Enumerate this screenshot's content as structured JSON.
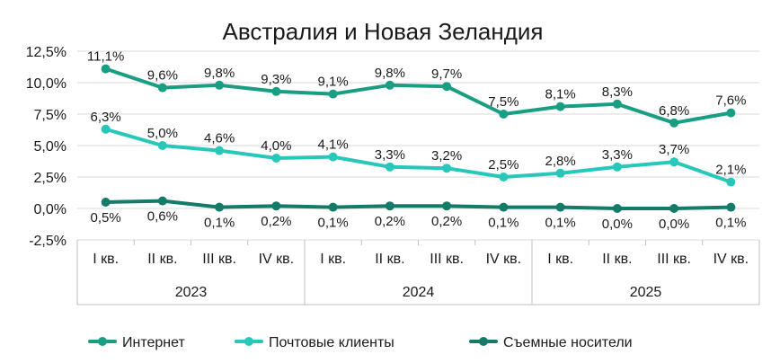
{
  "chart_data": {
    "type": "line",
    "title": "Австралия и Новая Зеландия",
    "ylim": [
      -2.5,
      12.5
    ],
    "yticks": [
      -2.5,
      0.0,
      2.5,
      5.0,
      7.5,
      10.0,
      12.5
    ],
    "ytick_labels": [
      "-2,5%",
      "0,0%",
      "2,5%",
      "5,0%",
      "7,5%",
      "10,0%",
      "12,5%"
    ],
    "categories": [
      "I кв.",
      "II кв.",
      "III кв.",
      "IV кв.",
      "I кв.",
      "II кв.",
      "III кв.",
      "IV кв.",
      "I кв.",
      "II кв.",
      "III кв.",
      "IV кв."
    ],
    "groups": [
      {
        "label": "2023",
        "span": 4
      },
      {
        "label": "2024",
        "span": 4
      },
      {
        "label": "2025",
        "span": 4
      }
    ],
    "grid": true,
    "legend_position": "bottom",
    "series": [
      {
        "name": "Интернет",
        "color": "#1a9e83",
        "values": [
          11.1,
          9.6,
          9.8,
          9.3,
          9.1,
          9.8,
          9.7,
          7.5,
          8.1,
          8.3,
          6.8,
          7.6
        ],
        "labels": [
          "11,1%",
          "9,6%",
          "9,8%",
          "9,3%",
          "9,1%",
          "9,8%",
          "9,7%",
          "7,5%",
          "8,1%",
          "8,3%",
          "6,8%",
          "7,6%"
        ],
        "label_position": "above"
      },
      {
        "name": "Почтовые клиенты",
        "color": "#27c8b9",
        "values": [
          6.3,
          5.0,
          4.6,
          4.0,
          4.1,
          3.3,
          3.2,
          2.5,
          2.8,
          3.3,
          3.7,
          2.1
        ],
        "labels": [
          "6,3%",
          "5,0%",
          "4,6%",
          "4,0%",
          "4,1%",
          "3,3%",
          "3,2%",
          "2,5%",
          "2,8%",
          "3,3%",
          "3,7%",
          "2,1%"
        ],
        "label_position": "above"
      },
      {
        "name": "Съемные носители",
        "color": "#137b68",
        "values": [
          0.5,
          0.6,
          0.1,
          0.2,
          0.1,
          0.2,
          0.2,
          0.1,
          0.1,
          0.0,
          0.0,
          0.1
        ],
        "labels": [
          "0,5%",
          "0,6%",
          "0,1%",
          "0,2%",
          "0,1%",
          "0,2%",
          "0,2%",
          "0,1%",
          "0,1%",
          "0,0%",
          "0,0%",
          "0,1%"
        ],
        "label_position": "below"
      }
    ]
  }
}
